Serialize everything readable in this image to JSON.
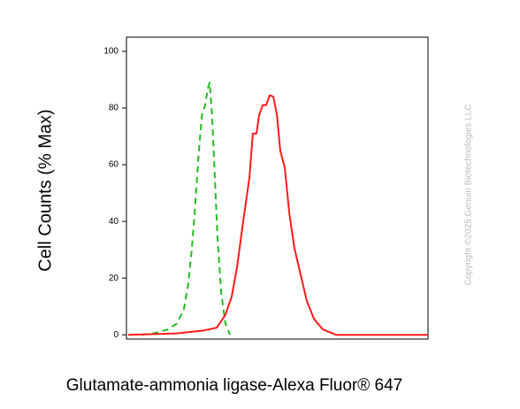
{
  "chart_data": {
    "type": "line",
    "y_label": "Cell Counts (% Max)",
    "x_label": "Glutamate-ammonia ligase-Alexa Fluor® 647",
    "watermark": "Copyright ©2025 Genuin Biotechnologies LLC",
    "xlim": [
      0,
      100
    ],
    "ylim": [
      -1.5,
      105
    ],
    "yticks": [
      0,
      20,
      40,
      60,
      80,
      100
    ],
    "series": [
      {
        "color": "#22bb22",
        "style": "dashed",
        "x": [
          5,
          9.4,
          13.8,
          16.7,
          19,
          20.5,
          21.7,
          22.6,
          23.8,
          25,
          26.1,
          27,
          27.6,
          28.4,
          29.3,
          30.2,
          31.4,
          32.8,
          34.3
        ],
        "values": [
          0,
          0.6,
          1.9,
          4,
          8.8,
          18,
          30.6,
          43,
          62,
          77.5,
          81,
          87,
          89,
          77.5,
          55.6,
          34,
          15,
          4,
          0
        ]
      },
      {
        "color": "#ff1a1a",
        "style": "solid",
        "x": [
          0.6,
          16.7,
          21,
          25.5,
          29.9,
          32.8,
          34.9,
          36.7,
          38.7,
          40.8,
          41.9,
          43.1,
          44,
          45.2,
          46.3,
          47.5,
          48.7,
          49.9,
          51,
          52.5,
          54,
          55.7,
          57.8,
          59.8,
          62.2,
          65.1,
          69.5,
          100
        ],
        "values": [
          0,
          0.5,
          1,
          1.5,
          2.5,
          7,
          13.5,
          24,
          40,
          55.6,
          71,
          71,
          77.5,
          81,
          81,
          84.5,
          84,
          77.5,
          65,
          59,
          43,
          30.6,
          21,
          12,
          5.6,
          1.9,
          0,
          0
        ]
      }
    ]
  }
}
